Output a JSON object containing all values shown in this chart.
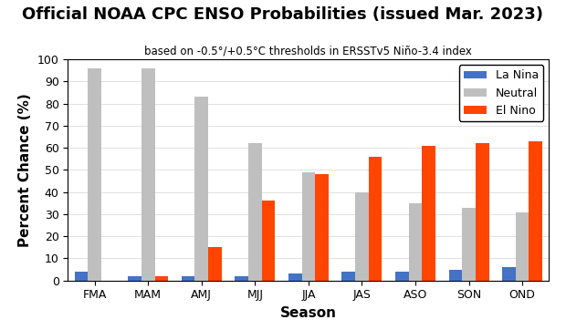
{
  "title": "Official NOAA CPC ENSO Probabilities (issued Mar. 2023)",
  "subtitle": "based on -0.5°/+0.5°C thresholds in ERSSTv5 Niño-3.4 index",
  "xlabel": "Season",
  "ylabel": "Percent Chance (%)",
  "seasons": [
    "FMA",
    "MAM",
    "AMJ",
    "MJJ",
    "JJA",
    "JAS",
    "ASO",
    "SON",
    "OND"
  ],
  "la_nina": [
    4,
    2,
    2,
    2,
    3,
    4,
    4,
    5,
    6
  ],
  "neutral": [
    96,
    96,
    83,
    62,
    49,
    40,
    35,
    33,
    31
  ],
  "el_nino": [
    0,
    2,
    15,
    36,
    48,
    56,
    61,
    62,
    63
  ],
  "la_nina_color": "#4472C4",
  "neutral_color": "#BFBFBF",
  "el_nino_color": "#FF4500",
  "ylim": [
    0,
    100
  ],
  "yticks": [
    0,
    10,
    20,
    30,
    40,
    50,
    60,
    70,
    80,
    90,
    100
  ],
  "title_fontsize": 13,
  "subtitle_fontsize": 8.5,
  "axis_label_fontsize": 11,
  "tick_fontsize": 9,
  "legend_fontsize": 9,
  "bar_width": 0.25,
  "background_color": "#FFFFFF",
  "axes_background_color": "#FFFFFF",
  "legend_labels": [
    "La Nina",
    "Neutral",
    "El Nino"
  ]
}
